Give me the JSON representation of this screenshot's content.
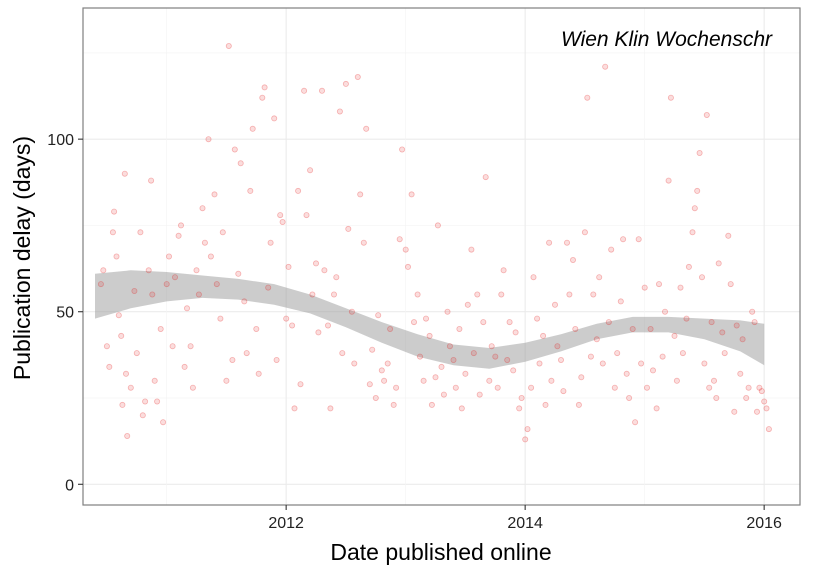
{
  "chart_data": {
    "type": "scatter",
    "annotation": "Wien Klin Wochenschr",
    "xlabel": "Date published online",
    "ylabel": "Publication delay (days)",
    "xlim": [
      2010.3,
      2016.3
    ],
    "ylim": [
      -6,
      138
    ],
    "x_ticks": [
      2012,
      2014,
      2016
    ],
    "x_tick_labels": [
      "2012",
      "2014",
      "2016"
    ],
    "y_ticks": [
      0,
      50,
      100
    ],
    "y_tick_labels": [
      "0",
      "50",
      "100"
    ],
    "grid": true,
    "legend": "none",
    "point_color": "#e31a1c",
    "ribbon_color": "#999999",
    "points": [
      [
        2010.45,
        58
      ],
      [
        2010.47,
        62
      ],
      [
        2010.5,
        40
      ],
      [
        2010.52,
        34
      ],
      [
        2010.55,
        73
      ],
      [
        2010.56,
        79
      ],
      [
        2010.58,
        66
      ],
      [
        2010.6,
        49
      ],
      [
        2010.62,
        43
      ],
      [
        2010.63,
        23
      ],
      [
        2010.65,
        90
      ],
      [
        2010.66,
        32
      ],
      [
        2010.67,
        14
      ],
      [
        2010.7,
        28
      ],
      [
        2010.73,
        56
      ],
      [
        2010.75,
        38
      ],
      [
        2010.78,
        73
      ],
      [
        2010.8,
        20
      ],
      [
        2010.82,
        24
      ],
      [
        2010.85,
        62
      ],
      [
        2010.87,
        88
      ],
      [
        2010.88,
        55
      ],
      [
        2010.9,
        30
      ],
      [
        2010.92,
        24
      ],
      [
        2010.95,
        45
      ],
      [
        2010.97,
        18
      ],
      [
        2011.0,
        58
      ],
      [
        2011.02,
        66
      ],
      [
        2011.05,
        40
      ],
      [
        2011.07,
        60
      ],
      [
        2011.1,
        72
      ],
      [
        2011.12,
        75
      ],
      [
        2011.15,
        34
      ],
      [
        2011.17,
        51
      ],
      [
        2011.2,
        40
      ],
      [
        2011.22,
        28
      ],
      [
        2011.25,
        62
      ],
      [
        2011.27,
        55
      ],
      [
        2011.3,
        80
      ],
      [
        2011.32,
        70
      ],
      [
        2011.35,
        100
      ],
      [
        2011.37,
        66
      ],
      [
        2011.4,
        84
      ],
      [
        2011.42,
        58
      ],
      [
        2011.45,
        48
      ],
      [
        2011.47,
        73
      ],
      [
        2011.5,
        30
      ],
      [
        2011.52,
        127
      ],
      [
        2011.55,
        36
      ],
      [
        2011.57,
        97
      ],
      [
        2011.6,
        61
      ],
      [
        2011.62,
        93
      ],
      [
        2011.65,
        53
      ],
      [
        2011.67,
        38
      ],
      [
        2011.7,
        85
      ],
      [
        2011.72,
        103
      ],
      [
        2011.75,
        45
      ],
      [
        2011.77,
        32
      ],
      [
        2011.8,
        112
      ],
      [
        2011.82,
        115
      ],
      [
        2011.85,
        57
      ],
      [
        2011.87,
        70
      ],
      [
        2011.9,
        106
      ],
      [
        2011.92,
        36
      ],
      [
        2011.95,
        78
      ],
      [
        2011.97,
        76
      ],
      [
        2012.0,
        48
      ],
      [
        2012.02,
        63
      ],
      [
        2012.05,
        46
      ],
      [
        2012.07,
        22
      ],
      [
        2012.1,
        85
      ],
      [
        2012.12,
        29
      ],
      [
        2012.15,
        114
      ],
      [
        2012.17,
        78
      ],
      [
        2012.2,
        91
      ],
      [
        2012.22,
        55
      ],
      [
        2012.25,
        64
      ],
      [
        2012.27,
        44
      ],
      [
        2012.3,
        114
      ],
      [
        2012.32,
        62
      ],
      [
        2012.35,
        46
      ],
      [
        2012.37,
        22
      ],
      [
        2012.4,
        55
      ],
      [
        2012.42,
        60
      ],
      [
        2012.45,
        108
      ],
      [
        2012.47,
        38
      ],
      [
        2012.5,
        116
      ],
      [
        2012.52,
        74
      ],
      [
        2012.55,
        50
      ],
      [
        2012.57,
        35
      ],
      [
        2012.6,
        118
      ],
      [
        2012.62,
        84
      ],
      [
        2012.65,
        70
      ],
      [
        2012.67,
        103
      ],
      [
        2012.7,
        29
      ],
      [
        2012.72,
        39
      ],
      [
        2012.75,
        25
      ],
      [
        2012.77,
        49
      ],
      [
        2012.8,
        33
      ],
      [
        2012.82,
        30
      ],
      [
        2012.85,
        35
      ],
      [
        2012.87,
        45
      ],
      [
        2012.9,
        23
      ],
      [
        2012.92,
        28
      ],
      [
        2012.95,
        71
      ],
      [
        2012.97,
        97
      ],
      [
        2013.0,
        68
      ],
      [
        2013.02,
        63
      ],
      [
        2013.05,
        84
      ],
      [
        2013.07,
        47
      ],
      [
        2013.1,
        55
      ],
      [
        2013.12,
        37
      ],
      [
        2013.15,
        30
      ],
      [
        2013.17,
        48
      ],
      [
        2013.2,
        43
      ],
      [
        2013.22,
        23
      ],
      [
        2013.25,
        31
      ],
      [
        2013.27,
        75
      ],
      [
        2013.3,
        34
      ],
      [
        2013.32,
        26
      ],
      [
        2013.35,
        50
      ],
      [
        2013.37,
        40
      ],
      [
        2013.4,
        36
      ],
      [
        2013.42,
        28
      ],
      [
        2013.45,
        45
      ],
      [
        2013.47,
        22
      ],
      [
        2013.5,
        32
      ],
      [
        2013.52,
        52
      ],
      [
        2013.55,
        68
      ],
      [
        2013.57,
        38
      ],
      [
        2013.6,
        55
      ],
      [
        2013.62,
        26
      ],
      [
        2013.65,
        47
      ],
      [
        2013.67,
        89
      ],
      [
        2013.7,
        30
      ],
      [
        2013.72,
        40
      ],
      [
        2013.75,
        37
      ],
      [
        2013.77,
        28
      ],
      [
        2013.8,
        55
      ],
      [
        2013.82,
        62
      ],
      [
        2013.85,
        36
      ],
      [
        2013.87,
        47
      ],
      [
        2013.9,
        33
      ],
      [
        2013.92,
        44
      ],
      [
        2013.95,
        22
      ],
      [
        2013.97,
        25
      ],
      [
        2014.0,
        13
      ],
      [
        2014.02,
        16
      ],
      [
        2014.05,
        28
      ],
      [
        2014.07,
        60
      ],
      [
        2014.1,
        48
      ],
      [
        2014.12,
        35
      ],
      [
        2014.15,
        43
      ],
      [
        2014.17,
        23
      ],
      [
        2014.2,
        70
      ],
      [
        2014.22,
        30
      ],
      [
        2014.25,
        52
      ],
      [
        2014.27,
        40
      ],
      [
        2014.3,
        36
      ],
      [
        2014.32,
        27
      ],
      [
        2014.35,
        70
      ],
      [
        2014.37,
        55
      ],
      [
        2014.4,
        65
      ],
      [
        2014.42,
        45
      ],
      [
        2014.45,
        23
      ],
      [
        2014.47,
        31
      ],
      [
        2014.5,
        73
      ],
      [
        2014.52,
        112
      ],
      [
        2014.55,
        37
      ],
      [
        2014.57,
        55
      ],
      [
        2014.6,
        42
      ],
      [
        2014.62,
        60
      ],
      [
        2014.65,
        35
      ],
      [
        2014.67,
        121
      ],
      [
        2014.7,
        47
      ],
      [
        2014.72,
        68
      ],
      [
        2014.75,
        28
      ],
      [
        2014.77,
        38
      ],
      [
        2014.8,
        53
      ],
      [
        2014.82,
        71
      ],
      [
        2014.85,
        32
      ],
      [
        2014.87,
        25
      ],
      [
        2014.9,
        45
      ],
      [
        2014.92,
        18
      ],
      [
        2014.95,
        71
      ],
      [
        2014.97,
        35
      ],
      [
        2015.0,
        57
      ],
      [
        2015.02,
        28
      ],
      [
        2015.05,
        45
      ],
      [
        2015.07,
        33
      ],
      [
        2015.1,
        22
      ],
      [
        2015.12,
        58
      ],
      [
        2015.15,
        37
      ],
      [
        2015.17,
        50
      ],
      [
        2015.2,
        88
      ],
      [
        2015.22,
        112
      ],
      [
        2015.25,
        43
      ],
      [
        2015.27,
        30
      ],
      [
        2015.3,
        57
      ],
      [
        2015.32,
        38
      ],
      [
        2015.35,
        48
      ],
      [
        2015.37,
        63
      ],
      [
        2015.4,
        73
      ],
      [
        2015.42,
        80
      ],
      [
        2015.44,
        85
      ],
      [
        2015.46,
        96
      ],
      [
        2015.48,
        60
      ],
      [
        2015.5,
        35
      ],
      [
        2015.52,
        107
      ],
      [
        2015.54,
        28
      ],
      [
        2015.56,
        47
      ],
      [
        2015.58,
        30
      ],
      [
        2015.6,
        25
      ],
      [
        2015.62,
        64
      ],
      [
        2015.65,
        44
      ],
      [
        2015.67,
        38
      ],
      [
        2015.7,
        72
      ],
      [
        2015.72,
        58
      ],
      [
        2015.75,
        21
      ],
      [
        2015.77,
        46
      ],
      [
        2015.8,
        32
      ],
      [
        2015.82,
        42
      ],
      [
        2015.85,
        25
      ],
      [
        2015.87,
        28
      ],
      [
        2015.9,
        50
      ],
      [
        2015.92,
        47
      ],
      [
        2015.94,
        21
      ],
      [
        2015.96,
        28
      ],
      [
        2015.98,
        27
      ],
      [
        2016.0,
        24
      ],
      [
        2016.02,
        22
      ],
      [
        2016.04,
        16
      ]
    ],
    "smooth": {
      "x": [
        2010.4,
        2010.7,
        2011.0,
        2011.3,
        2011.6,
        2011.9,
        2012.2,
        2012.5,
        2012.8,
        2013.1,
        2013.4,
        2013.7,
        2014.0,
        2014.3,
        2014.6,
        2014.9,
        2015.2,
        2015.5,
        2015.8,
        2016.0
      ],
      "lower": [
        48,
        51,
        53,
        54,
        53.5,
        52,
        49.5,
        45.5,
        41,
        37,
        34.5,
        33.5,
        35.5,
        38.5,
        42,
        44,
        44,
        42,
        38.5,
        34.5
      ],
      "upper": [
        61,
        62,
        61.5,
        60.5,
        59.5,
        58,
        55,
        51,
        47,
        43.5,
        40.5,
        39.5,
        41,
        43.5,
        46.5,
        48.5,
        48.5,
        48,
        47.5,
        46.5
      ]
    }
  }
}
